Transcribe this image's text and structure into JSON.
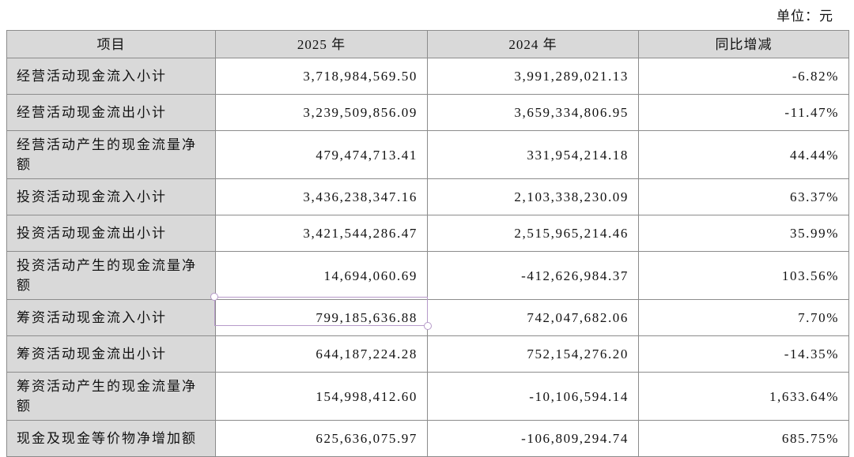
{
  "unit": "单位：元",
  "table": {
    "header": [
      "项目",
      "2025 年",
      "2024 年",
      "同比增减"
    ],
    "rows": [
      [
        "经营活动现金流入小计",
        "3,718,984,569.50",
        "3,991,289,021.13",
        "-6.82%"
      ],
      [
        "经营活动现金流出小计",
        "3,239,509,856.09",
        "3,659,334,806.95",
        "-11.47%"
      ],
      [
        "经营活动产生的现金流量净额",
        "479,474,713.41",
        "331,954,214.18",
        "44.44%"
      ],
      [
        "投资活动现金流入小计",
        "3,436,238,347.16",
        "2,103,338,230.09",
        "63.37%"
      ],
      [
        "投资活动现金流出小计",
        "3,421,544,286.47",
        "2,515,965,214.46",
        "35.99%"
      ],
      [
        "投资活动产生的现金流量净额",
        "14,694,060.69",
        "-412,626,984.37",
        "103.56%"
      ],
      [
        "筹资活动现金流入小计",
        "799,185,636.88",
        "742,047,682.06",
        "7.70%"
      ],
      [
        "筹资活动现金流出小计",
        "644,187,224.28",
        "752,154,276.20",
        "-14.35%"
      ],
      [
        "筹资活动产生的现金流量净额",
        "154,998,412.60",
        "-10,106,594.14",
        "1,633.64%"
      ],
      [
        "现金及现金等价物净增加额",
        "625,636,075.97",
        "-106,809,294.74",
        "685.75%"
      ]
    ]
  }
}
